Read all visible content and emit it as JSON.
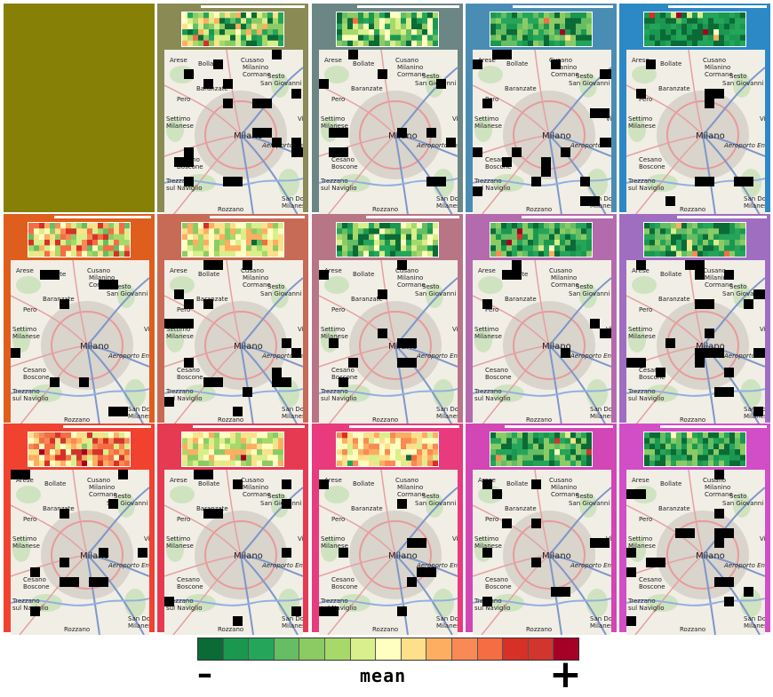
{
  "chart_data": {
    "type": "heatmap",
    "title": "",
    "layout": "3 rows x 5 columns of small-multiple panels; first panel empty",
    "panels": [
      {
        "row": 1,
        "col": 1,
        "frame_color": "#878006",
        "empty": true
      },
      {
        "row": 1,
        "col": 2,
        "frame_color": "#8a8a55",
        "level": "mixed"
      },
      {
        "row": 1,
        "col": 3,
        "frame_color": "#6c8686",
        "level": "green-mixed"
      },
      {
        "row": 1,
        "col": 4,
        "frame_color": "#4a8db4",
        "level": "green"
      },
      {
        "row": 1,
        "col": 5,
        "frame_color": "#2c89c6",
        "level": "dark-green"
      },
      {
        "row": 2,
        "col": 1,
        "frame_color": "#df5e1d",
        "level": "yellow-mixed"
      },
      {
        "row": 2,
        "col": 2,
        "frame_color": "#c86b56",
        "level": "light"
      },
      {
        "row": 2,
        "col": 3,
        "frame_color": "#b77586",
        "level": "green-mixed"
      },
      {
        "row": 2,
        "col": 4,
        "frame_color": "#b46bad",
        "level": "green"
      },
      {
        "row": 2,
        "col": 5,
        "frame_color": "#9f6ec1",
        "level": "green"
      },
      {
        "row": 3,
        "col": 1,
        "frame_color": "#f1412f",
        "level": "orange"
      },
      {
        "row": 3,
        "col": 2,
        "frame_color": "#e63a53",
        "level": "light"
      },
      {
        "row": 3,
        "col": 3,
        "frame_color": "#e83a7c",
        "level": "yellow-orange"
      },
      {
        "row": 3,
        "col": 4,
        "frame_color": "#d246b5",
        "level": "green"
      },
      {
        "row": 3,
        "col": 5,
        "frame_color": "#d24ec7",
        "level": "green"
      }
    ],
    "map_labels": [
      "Arese",
      "Bollate",
      "Cusano",
      "Milanino",
      "Cormano",
      "Baranzate",
      "Sesto",
      "San Giovanni",
      "Pero",
      "Settimo",
      "Milanese",
      "Milano",
      "Aeroporto Enrico",
      "Vimo",
      "Cesano",
      "Boscone",
      "Trezzano",
      "sul Naviglio",
      "Rozzano",
      "San Donato",
      "Milanese"
    ],
    "legend": {
      "label": "mean",
      "low_symbol": "–",
      "high_symbol": "+",
      "colors": [
        "#0a6b37",
        "#1a9850",
        "#24a55a",
        "#66bd63",
        "#8ccb64",
        "#a6d96a",
        "#d9ef8b",
        "#ffffbf",
        "#fee08b",
        "#fdae61",
        "#f98a55",
        "#f46d43",
        "#d73027",
        "#d0362d",
        "#a50026"
      ]
    }
  }
}
